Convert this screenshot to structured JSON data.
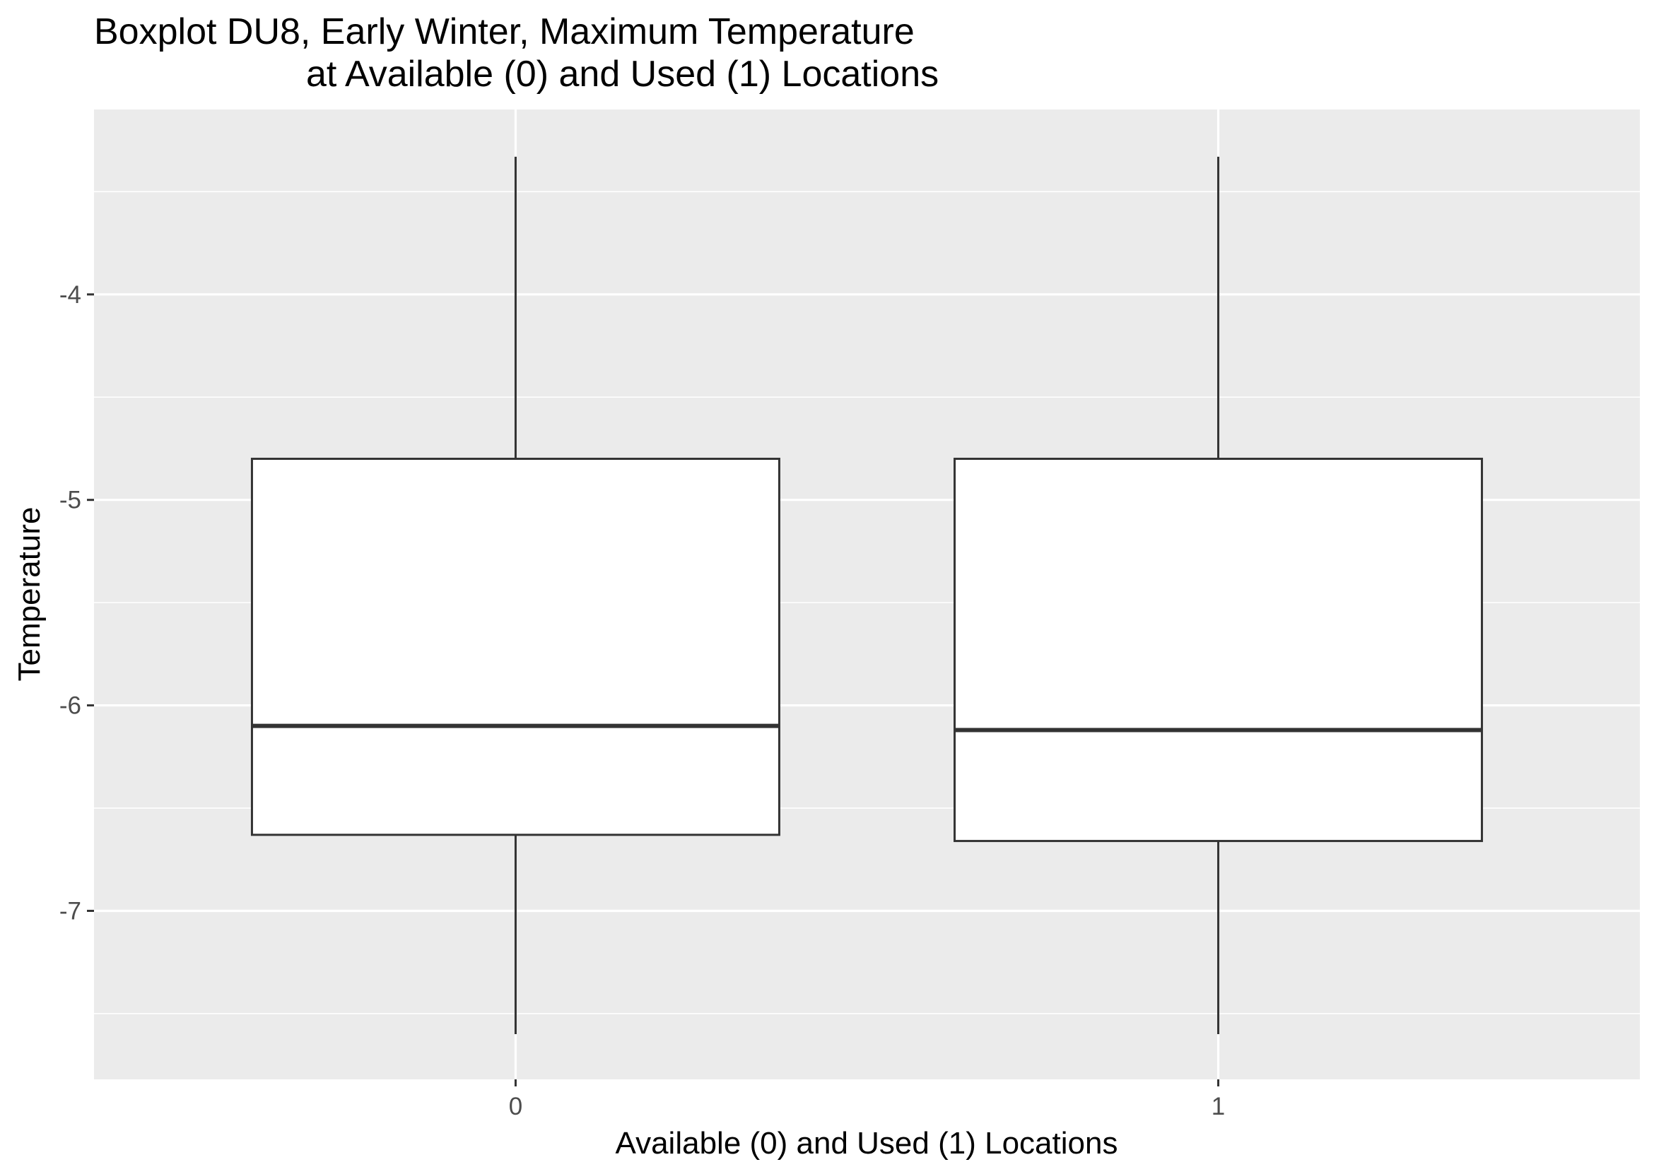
{
  "chart_data": {
    "type": "boxplot",
    "title_line1": "Boxplot DU8, Early Winter, Maximum Temperature",
    "title_line2": "at Available (0) and Used (1) Locations",
    "xlabel": "Available (0) and Used (1) Locations",
    "ylabel": "Temperature",
    "categories": [
      "0",
      "1"
    ],
    "y_ticks": [
      -7,
      -6,
      -5,
      -4
    ],
    "y_tick_labels": [
      "-7",
      "-6",
      "-5",
      "-4"
    ],
    "ylim": [
      -7.82,
      -3.1
    ],
    "grid": true,
    "legend": "none",
    "boxes": [
      {
        "category": "0",
        "whisker_low": -7.6,
        "q1": -6.63,
        "median": -6.1,
        "q3": -4.8,
        "whisker_high": -3.33
      },
      {
        "category": "1",
        "whisker_low": -7.6,
        "q1": -6.66,
        "median": -6.12,
        "q3": -4.8,
        "whisker_high": -3.33
      }
    ],
    "colors": {
      "panel": "#ebebeb",
      "grid": "#ffffff",
      "box_fill": "#ffffff",
      "box_stroke": "#333333"
    }
  }
}
